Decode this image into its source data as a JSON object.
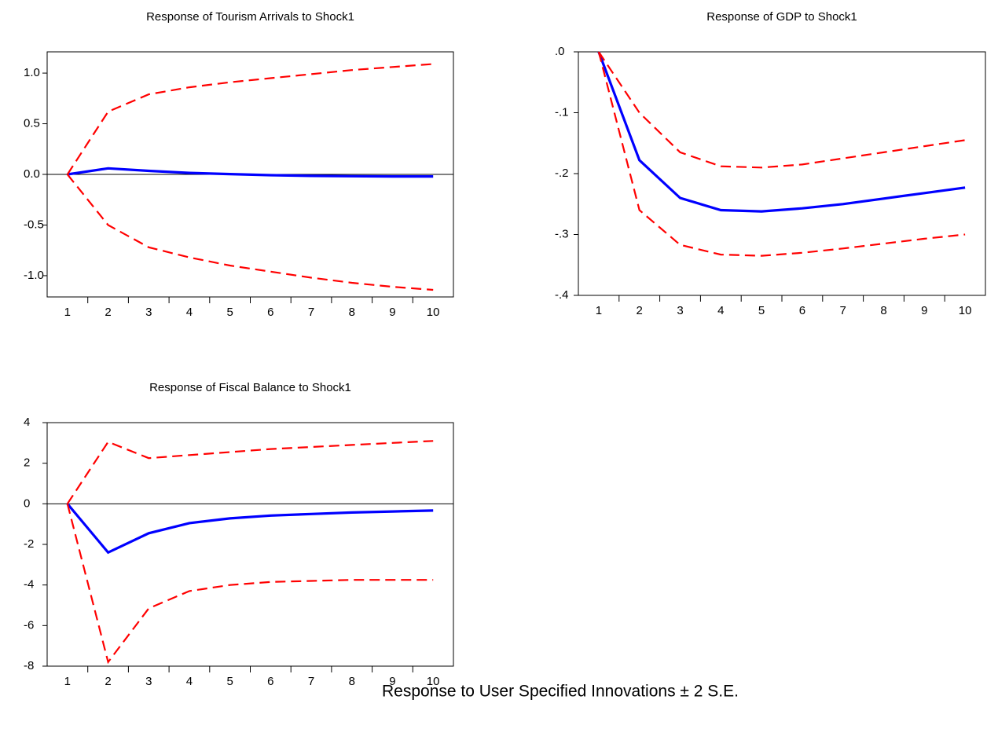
{
  "caption": "Response to User Specified Innovations ± 2 S.E.",
  "chart_data": [
    {
      "type": "line",
      "title": "Response of Tourism Arrivals to Shock1",
      "categories": [
        "1",
        "2",
        "3",
        "4",
        "5",
        "6",
        "7",
        "8",
        "9",
        "10"
      ],
      "ylim": [
        -1.21,
        1.21
      ],
      "yticks": [
        {
          "value": -1.0,
          "label": "-1.0"
        },
        -0.5,
        {
          "value": 0,
          "label": "0.0"
        },
        0.5,
        {
          "value": 1.0,
          "label": "1.0"
        }
      ],
      "zero_line": true,
      "series": [
        {
          "color": "#0000ff",
          "dashed": false,
          "values": [
            0,
            0.06,
            0.035,
            0.015,
            0.003,
            -0.008,
            -0.015,
            -0.018,
            -0.02,
            -0.02
          ]
        },
        {
          "color": "#ff0000",
          "dashed": true,
          "values": [
            0,
            0.62,
            0.79,
            0.86,
            0.91,
            0.95,
            0.99,
            1.03,
            1.06,
            1.09
          ]
        },
        {
          "color": "#ff0000",
          "dashed": true,
          "values": [
            0,
            -0.5,
            -0.72,
            -0.82,
            -0.9,
            -0.96,
            -1.02,
            -1.07,
            -1.11,
            -1.14
          ]
        }
      ]
    },
    {
      "type": "line",
      "title": "Response of GDP to Shock1",
      "categories": [
        "1",
        "2",
        "3",
        "4",
        "5",
        "6",
        "7",
        "8",
        "9",
        "10"
      ],
      "ylim": [
        -0.4,
        0
      ],
      "yticks": [
        {
          "value": -0.4,
          "label": "-.4"
        },
        {
          "value": -0.3,
          "label": "-.3"
        },
        {
          "value": -0.2,
          "label": "-.2"
        },
        {
          "value": -0.1,
          "label": "-.1"
        },
        {
          "value": 0,
          "label": ".0"
        }
      ],
      "zero_line": true,
      "series": [
        {
          "color": "#0000ff",
          "dashed": false,
          "values": [
            0,
            -0.178,
            -0.24,
            -0.26,
            -0.262,
            -0.257,
            -0.25,
            -0.241,
            -0.232,
            -0.223
          ]
        },
        {
          "color": "#ff0000",
          "dashed": true,
          "values": [
            0,
            -0.1,
            -0.165,
            -0.188,
            -0.19,
            -0.185,
            -0.175,
            -0.165,
            -0.155,
            -0.145
          ]
        },
        {
          "color": "#ff0000",
          "dashed": true,
          "values": [
            0,
            -0.26,
            -0.317,
            -0.333,
            -0.335,
            -0.33,
            -0.323,
            -0.315,
            -0.307,
            -0.3
          ]
        }
      ]
    },
    {
      "type": "line",
      "title": "Response of Fiscal Balance  to Shock1",
      "categories": [
        "1",
        "2",
        "3",
        "4",
        "5",
        "6",
        "7",
        "8",
        "9",
        "10"
      ],
      "ylim": [
        -8,
        4
      ],
      "yticks": [
        -8,
        -6,
        -4,
        -2,
        0,
        2,
        4
      ],
      "zero_line": true,
      "series": [
        {
          "color": "#0000ff",
          "dashed": false,
          "values": [
            0,
            -2.4,
            -1.45,
            -0.95,
            -0.72,
            -0.58,
            -0.5,
            -0.43,
            -0.38,
            -0.33
          ]
        },
        {
          "color": "#ff0000",
          "dashed": true,
          "values": [
            0,
            3.05,
            2.25,
            2.4,
            2.55,
            2.7,
            2.8,
            2.9,
            3.0,
            3.1
          ]
        },
        {
          "color": "#ff0000",
          "dashed": true,
          "values": [
            0,
            -7.8,
            -5.15,
            -4.3,
            -4.0,
            -3.85,
            -3.8,
            -3.75,
            -3.75,
            -3.75
          ]
        }
      ]
    }
  ]
}
